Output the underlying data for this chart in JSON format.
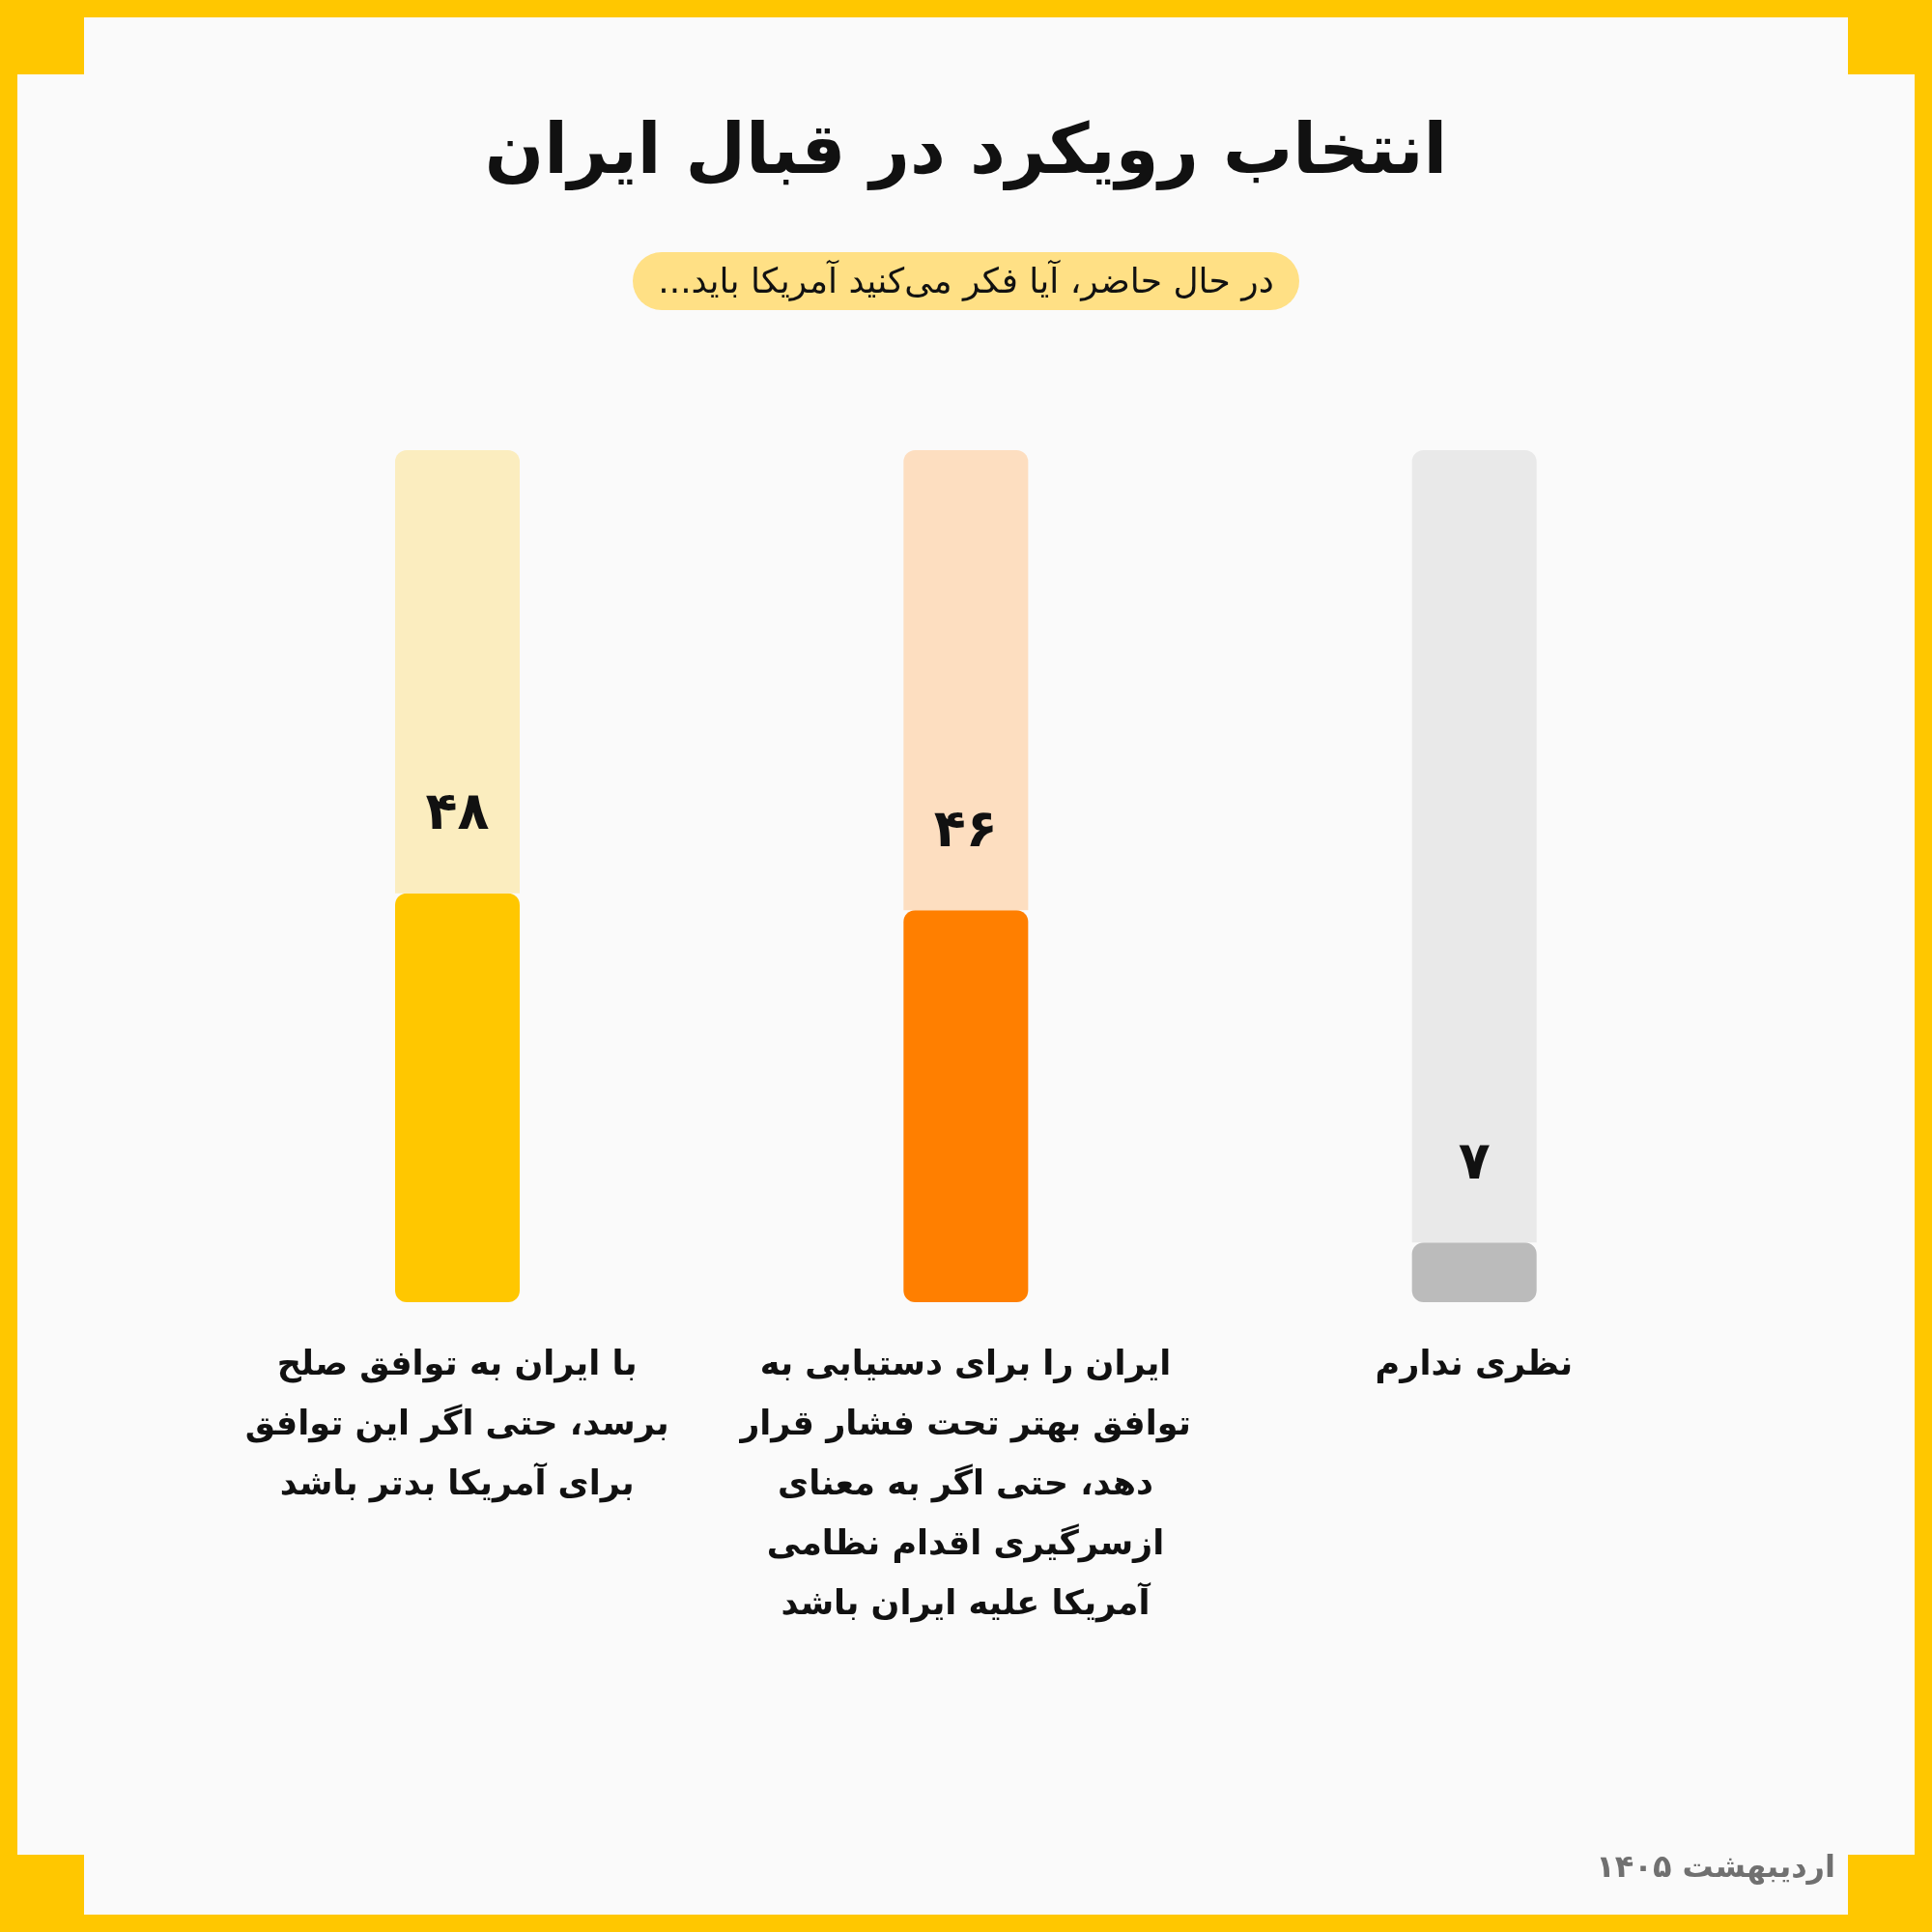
{
  "chart_data": {
    "type": "bar",
    "title": "انتخاب رویکرد در قبال ایران",
    "subtitle": "در حال حاضر، آیا فکر می‌کنید آمریکا باید...",
    "categories": [
      "با ایران به توافق صلح برسد، حتی اگر این توافق برای آمریکا بدتر باشد",
      "ایران را برای دستیابی به توافق بهتر تحت فشار قرار دهد، حتی اگر به معنای ازسرگیری اقدام نظامی آمریکا علیه ایران باشد",
      "نظری ندارم"
    ],
    "stacked": true,
    "series": [
      {
        "values": [
          48,
          46,
          7
        ],
        "colors": [
          "#ffc700",
          "#ff7f00",
          "#bbbbbb"
        ],
        "value_labels": [
          "۴۸",
          "۴۶",
          "۷"
        ]
      },
      {
        "values": [
          52,
          54,
          93
        ],
        "colors": [
          "#fbedbf",
          "#fddec0",
          "#e9e9e9"
        ]
      }
    ],
    "ylim": [
      0,
      100
    ],
    "tick_labels": "x",
    "annotations": [
      "اردیبهشت ۱۴۰۵"
    ]
  }
}
